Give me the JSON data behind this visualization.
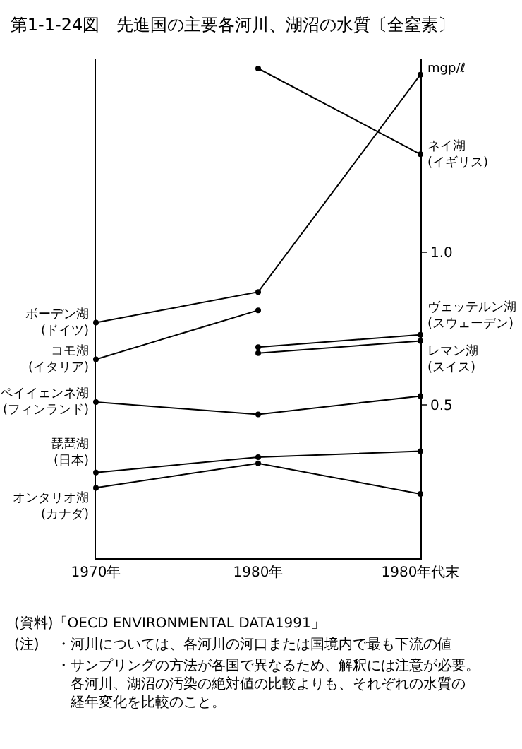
{
  "chart_data": {
    "type": "line",
    "title": "第1-1-24図　先進国の主要各河川、湖沼の水質〔全窒素〕",
    "ylabel": "mgp/ℓ",
    "categories": [
      "1970年",
      "1980年",
      "1980年代末"
    ],
    "series": [
      {
        "name": "ネイ湖\n(イギリス)",
        "color": "#000000",
        "values": [
          null,
          1.6,
          1.32
        ]
      },
      {
        "name": "ボーデン湖\n(ドイツ)",
        "color": "#000000",
        "values": [
          0.77,
          0.87,
          1.58
        ]
      },
      {
        "name": "コモ湖\n(イタリア)",
        "color": "#000000",
        "values": [
          0.65,
          0.81,
          null
        ]
      },
      {
        "name": "ヴェッテルン湖\n(スウェーデン)",
        "color": "#000000",
        "values": [
          null,
          0.69,
          0.73
        ]
      },
      {
        "name": "レマン湖\n(スイス)",
        "color": "#000000",
        "values": [
          null,
          0.67,
          0.71
        ]
      },
      {
        "name": "ペイイェンネ湖\n(フィンランド)",
        "color": "#000000",
        "values": [
          0.51,
          0.47,
          0.53
        ]
      },
      {
        "name": "琵琶湖\n(日本)",
        "color": "#000000",
        "values": [
          0.28,
          0.33,
          0.35
        ]
      },
      {
        "name": "オンタリオ湖\n(カナダ)",
        "color": "#000000",
        "values": [
          0.23,
          0.31,
          0.21
        ]
      }
    ],
    "ylim": [
      0,
      1.63
    ],
    "yticks": [
      0.5,
      {
        "value": 1,
        "label": "1.0"
      }
    ],
    "marker": "circle",
    "line_style": "solid",
    "legend": false,
    "annotations": [
      "(資料)「OECD ENVIRONMENTAL DATA1991」",
      "(注)",
      "・河川については、各河川の河口または国境内で最も下流の値",
      "・サンプリングの方法が各国で異なるため、解釈には注意が必要。各河川、湖沼の汚染の絶対値の比較よりも、それぞれの水質の経年変化を比較のこと。"
    ]
  }
}
